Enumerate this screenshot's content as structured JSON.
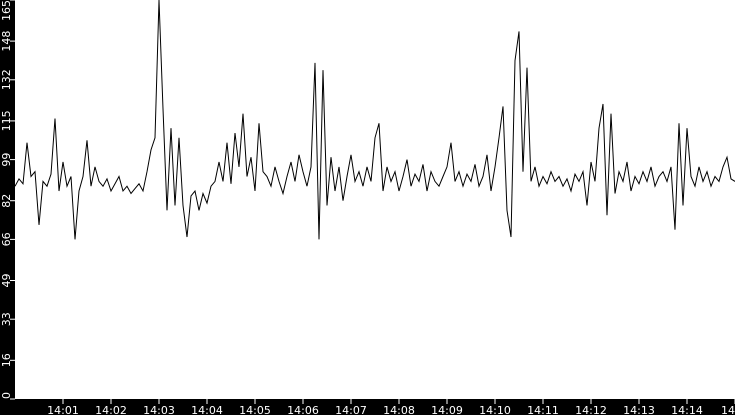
{
  "chart_data": {
    "type": "line",
    "title": "",
    "xlabel": "",
    "ylabel": "",
    "ylim": [
      0,
      165
    ],
    "xlim": [
      "14:00:00",
      "14:15:00"
    ],
    "grid": false,
    "colors": {
      "background": "#000000",
      "plot": "#ffffff",
      "line": "#000000",
      "text": "#ffffff"
    },
    "y_ticks": [
      "0",
      "16",
      "33",
      "49",
      "66",
      "82",
      "99",
      "115",
      "132",
      "148",
      "165"
    ],
    "x_ticks": [
      "14:01",
      "14:02",
      "14:03",
      "14:04",
      "14:05",
      "14:06",
      "14:07",
      "14:08",
      "14:09",
      "14:10",
      "14:11",
      "14:12",
      "14:13",
      "14:14",
      "14"
    ],
    "series": [
      {
        "x": [
          "14:00:00",
          "14:00:05",
          "14:00:10",
          "14:00:15",
          "14:00:20",
          "14:00:25",
          "14:00:30",
          "14:00:35",
          "14:00:40",
          "14:00:45",
          "14:00:50",
          "14:00:55",
          "14:01:00",
          "14:01:05",
          "14:01:10",
          "14:01:15",
          "14:01:20",
          "14:01:25",
          "14:01:30",
          "14:01:35",
          "14:01:40",
          "14:01:45",
          "14:01:50",
          "14:01:55",
          "14:02:00",
          "14:02:05",
          "14:02:10",
          "14:02:15",
          "14:02:20",
          "14:02:25",
          "14:02:30",
          "14:02:35",
          "14:02:40",
          "14:02:45",
          "14:02:50",
          "14:02:55",
          "14:03:00",
          "14:03:05",
          "14:03:10",
          "14:03:15",
          "14:03:20",
          "14:03:25",
          "14:03:30",
          "14:03:35",
          "14:03:40",
          "14:03:45",
          "14:03:50",
          "14:03:55",
          "14:04:00",
          "14:04:05",
          "14:04:10",
          "14:04:15",
          "14:04:20",
          "14:04:25",
          "14:04:30",
          "14:04:35",
          "14:04:40",
          "14:04:45",
          "14:04:50",
          "14:04:55",
          "14:05:00",
          "14:05:05",
          "14:05:10",
          "14:05:15",
          "14:05:20",
          "14:05:25",
          "14:05:30",
          "14:05:35",
          "14:05:40",
          "14:05:45",
          "14:05:50",
          "14:05:55",
          "14:06:00",
          "14:06:05",
          "14:06:10",
          "14:06:15",
          "14:06:20",
          "14:06:25",
          "14:06:30",
          "14:06:35",
          "14:06:40",
          "14:06:45",
          "14:06:50",
          "14:06:55",
          "14:07:00",
          "14:07:05",
          "14:07:10",
          "14:07:15",
          "14:07:20",
          "14:07:25",
          "14:07:30",
          "14:07:35",
          "14:07:40",
          "14:07:45",
          "14:07:50",
          "14:07:55",
          "14:08:00",
          "14:08:05",
          "14:08:10",
          "14:08:15",
          "14:08:20",
          "14:08:25",
          "14:08:30",
          "14:08:35",
          "14:08:40",
          "14:08:45",
          "14:08:50",
          "14:08:55",
          "14:09:00",
          "14:09:05",
          "14:09:10",
          "14:09:15",
          "14:09:20",
          "14:09:25",
          "14:09:30",
          "14:09:35",
          "14:09:40",
          "14:09:45",
          "14:09:50",
          "14:09:55",
          "14:10:00",
          "14:10:05",
          "14:10:10",
          "14:10:15",
          "14:10:20",
          "14:10:25",
          "14:10:30",
          "14:10:35",
          "14:10:40",
          "14:10:45",
          "14:10:50",
          "14:10:55",
          "14:11:00",
          "14:11:05",
          "14:11:10",
          "14:11:15",
          "14:11:20",
          "14:11:25",
          "14:11:30",
          "14:11:35",
          "14:11:40",
          "14:11:45",
          "14:11:50",
          "14:11:55",
          "14:12:00",
          "14:12:05",
          "14:12:10",
          "14:12:15",
          "14:12:20",
          "14:12:25",
          "14:12:30",
          "14:12:35",
          "14:12:40",
          "14:12:45",
          "14:12:50",
          "14:12:55",
          "14:13:00",
          "14:13:05",
          "14:13:10",
          "14:13:15",
          "14:13:20",
          "14:13:25",
          "14:13:30",
          "14:13:35",
          "14:13:40",
          "14:13:45",
          "14:13:50",
          "14:13:55",
          "14:14:00",
          "14:14:05",
          "14:14:10",
          "14:14:15",
          "14:14:20",
          "14:14:25",
          "14:14:30",
          "14:14:35",
          "14:14:40",
          "14:14:45",
          "14:14:50",
          "14:14:55",
          "14:15:00"
        ],
        "values": [
          88,
          91,
          89,
          106,
          92,
          94,
          72,
          90,
          88,
          93,
          116,
          86,
          98,
          88,
          92,
          66,
          86,
          92,
          107,
          88,
          96,
          90,
          88,
          91,
          86,
          89,
          92,
          86,
          88,
          85,
          87,
          89,
          86,
          94,
          103,
          108,
          165,
          120,
          78,
          112,
          80,
          108,
          80,
          67,
          84,
          86,
          78,
          85,
          81,
          88,
          90,
          98,
          90,
          106,
          89,
          110,
          96,
          118,
          92,
          100,
          86,
          114,
          94,
          92,
          88,
          96,
          90,
          85,
          92,
          98,
          90,
          101,
          94,
          88,
          96,
          139,
          66,
          136,
          80,
          100,
          86,
          96,
          82,
          92,
          101,
          90,
          94,
          88,
          96,
          90,
          108,
          114,
          86,
          96,
          90,
          94,
          86,
          92,
          99,
          88,
          93,
          90,
          97,
          86,
          94,
          90,
          88,
          92,
          96,
          106,
          90,
          94,
          88,
          93,
          90,
          97,
          88,
          92,
          101,
          86,
          96,
          108,
          121,
          78,
          67,
          140,
          152,
          94,
          137,
          90,
          96,
          88,
          92,
          89,
          94,
          90,
          92,
          88,
          91,
          86,
          93,
          90,
          94,
          80,
          98,
          90,
          112,
          122,
          76,
          118,
          85,
          94,
          90,
          98,
          86,
          92,
          89,
          94,
          90,
          96,
          88,
          92,
          94,
          90,
          96,
          70,
          114,
          80,
          112,
          92,
          88,
          96,
          90,
          94,
          88,
          92,
          90,
          96,
          100,
          91,
          90
        ]
      }
    ]
  }
}
